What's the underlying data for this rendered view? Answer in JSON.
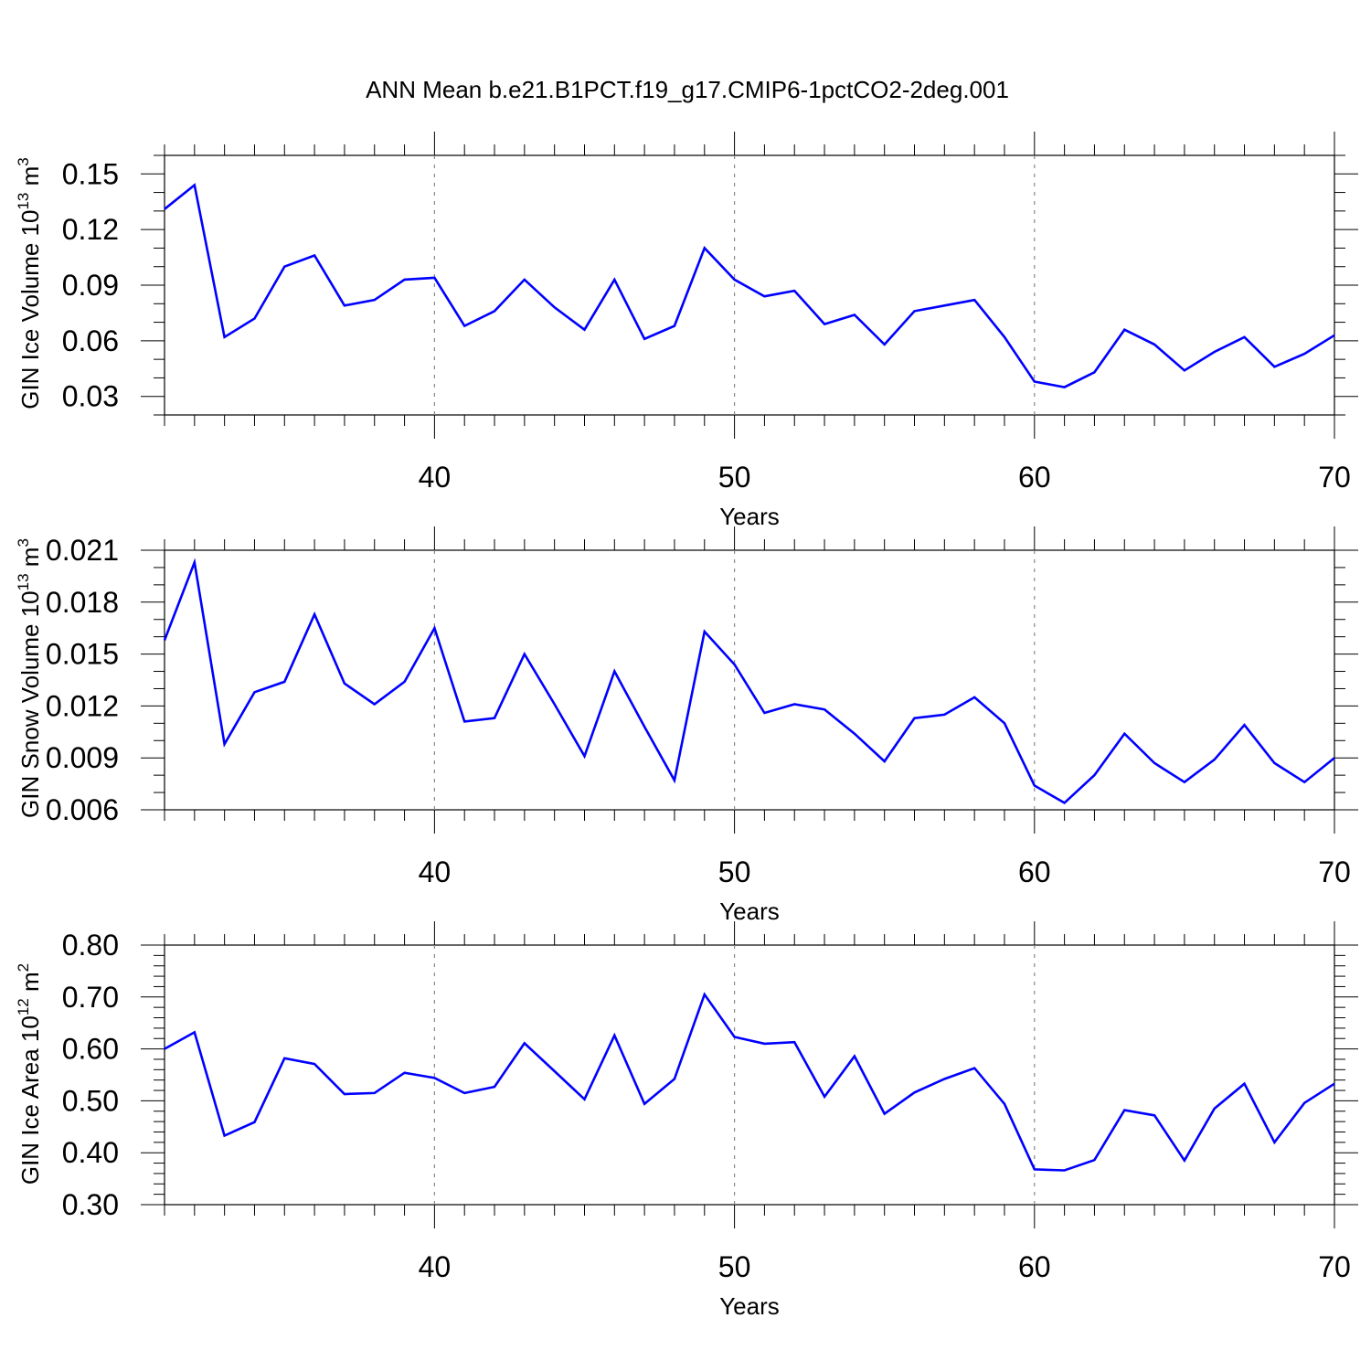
{
  "title": "ANN Mean b.e21.B1PCT.f19_g17.CMIP6-1pctCO2-2deg.001",
  "colors": {
    "line": "#0000ff",
    "axis": "#000000",
    "grid": "#888888"
  },
  "chart_data": [
    {
      "type": "line",
      "ylabel": "GIN Ice Volume",
      "ylabel_unit": "10",
      "ylabel_exp": "13",
      "ylabel_unit2": "m",
      "ylabel_exp2": "3",
      "xlabel": "Years",
      "xlim": [
        31,
        70
      ],
      "ylim": [
        0.02,
        0.16
      ],
      "yticks": [
        0.03,
        0.06,
        0.09,
        0.12,
        0.15
      ],
      "ytick_labels": [
        "0.03",
        "0.06",
        "0.09",
        "0.12",
        "0.15"
      ],
      "ytick_minor": 0.01,
      "xticks": [
        40,
        50,
        60,
        70
      ],
      "xtick_labels": [
        "40",
        "50",
        "60",
        "70"
      ],
      "x": [
        31,
        32,
        33,
        34,
        35,
        36,
        37,
        38,
        39,
        40,
        41,
        42,
        43,
        44,
        45,
        46,
        47,
        48,
        49,
        50,
        51,
        52,
        53,
        54,
        55,
        56,
        57,
        58,
        59,
        60,
        61,
        62,
        63,
        64,
        65,
        66,
        67,
        68,
        69,
        70
      ],
      "values": [
        0.131,
        0.144,
        0.062,
        0.072,
        0.1,
        0.106,
        0.079,
        0.082,
        0.093,
        0.094,
        0.068,
        0.076,
        0.093,
        0.078,
        0.066,
        0.093,
        0.061,
        0.068,
        0.11,
        0.093,
        0.084,
        0.087,
        0.069,
        0.074,
        0.058,
        0.076,
        0.079,
        0.082,
        0.062,
        0.038,
        0.035,
        0.043,
        0.066,
        0.058,
        0.044,
        0.054,
        0.062,
        0.046,
        0.053,
        0.063
      ]
    },
    {
      "type": "line",
      "ylabel": "GIN Snow Volume",
      "ylabel_unit": "10",
      "ylabel_exp": "13",
      "ylabel_unit2": "m",
      "ylabel_exp2": "3",
      "xlabel": "Years",
      "xlim": [
        31,
        70
      ],
      "ylim": [
        0.006,
        0.021
      ],
      "yticks": [
        0.006,
        0.009,
        0.012,
        0.015,
        0.018,
        0.021
      ],
      "ytick_labels": [
        "0.006",
        "0.009",
        "0.012",
        "0.015",
        "0.018",
        "0.021"
      ],
      "ytick_minor": 0.001,
      "xticks": [
        40,
        50,
        60,
        70
      ],
      "xtick_labels": [
        "40",
        "50",
        "60",
        "70"
      ],
      "x": [
        31,
        32,
        33,
        34,
        35,
        36,
        37,
        38,
        39,
        40,
        41,
        42,
        43,
        44,
        45,
        46,
        47,
        48,
        49,
        50,
        51,
        52,
        53,
        54,
        55,
        56,
        57,
        58,
        59,
        60,
        61,
        62,
        63,
        64,
        65,
        66,
        67,
        68,
        69,
        70
      ],
      "values": [
        0.0158,
        0.0203,
        0.0098,
        0.0128,
        0.0134,
        0.0173,
        0.0133,
        0.0121,
        0.0134,
        0.0165,
        0.0111,
        0.0113,
        0.015,
        0.0121,
        0.0091,
        0.014,
        0.0108,
        0.0077,
        0.0163,
        0.0144,
        0.0116,
        0.0121,
        0.0118,
        0.0104,
        0.0088,
        0.0113,
        0.0115,
        0.0125,
        0.011,
        0.0074,
        0.0064,
        0.008,
        0.0104,
        0.0087,
        0.0076,
        0.0089,
        0.0109,
        0.0087,
        0.0076,
        0.009
      ]
    },
    {
      "type": "line",
      "ylabel": "GIN Ice Area",
      "ylabel_unit": "10",
      "ylabel_exp": "12",
      "ylabel_unit2": "m",
      "ylabel_exp2": "2",
      "xlabel": "Years",
      "xlim": [
        31,
        70
      ],
      "ylim": [
        0.3,
        0.8
      ],
      "yticks": [
        0.3,
        0.4,
        0.5,
        0.6,
        0.7,
        0.8
      ],
      "ytick_labels": [
        "0.30",
        "0.40",
        "0.50",
        "0.60",
        "0.70",
        "0.80"
      ],
      "ytick_minor": 0.02,
      "xticks": [
        40,
        50,
        60,
        70
      ],
      "xtick_labels": [
        "40",
        "50",
        "60",
        "70"
      ],
      "x": [
        31,
        32,
        33,
        34,
        35,
        36,
        37,
        38,
        39,
        40,
        41,
        42,
        43,
        44,
        45,
        46,
        47,
        48,
        49,
        50,
        51,
        52,
        53,
        54,
        55,
        56,
        57,
        58,
        59,
        60,
        61,
        62,
        63,
        64,
        65,
        66,
        67,
        68,
        69,
        70
      ],
      "values": [
        0.6,
        0.632,
        0.433,
        0.459,
        0.582,
        0.571,
        0.513,
        0.515,
        0.554,
        0.544,
        0.515,
        0.527,
        0.611,
        0.557,
        0.503,
        0.626,
        0.494,
        0.542,
        0.705,
        0.623,
        0.61,
        0.613,
        0.508,
        0.586,
        0.475,
        0.516,
        0.542,
        0.563,
        0.494,
        0.368,
        0.366,
        0.386,
        0.482,
        0.472,
        0.385,
        0.485,
        0.533,
        0.42,
        0.496,
        0.533
      ]
    }
  ]
}
